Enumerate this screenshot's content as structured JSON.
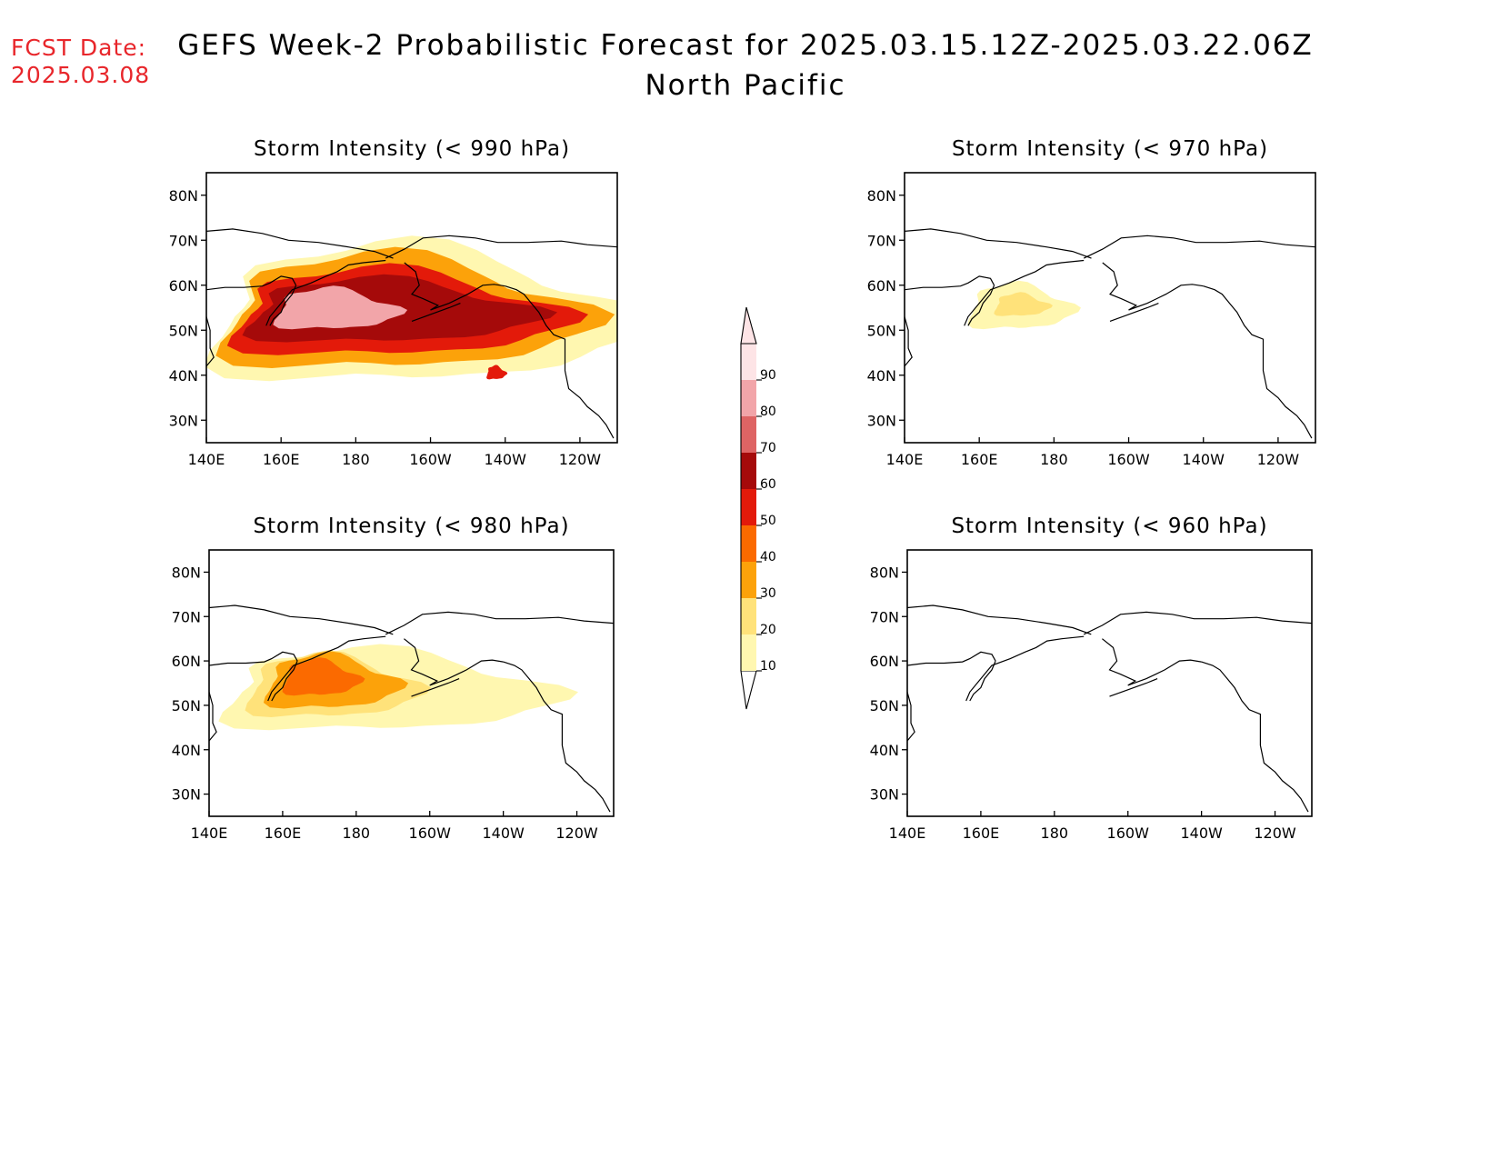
{
  "header": {
    "fcst_label": "FCST Date:",
    "fcst_date": "2025.03.08",
    "title_line1": "GEFS Week-2 Probabilistic Forecast for 2025.03.15.12Z-2025.03.22.06Z",
    "title_line2": "North Pacific"
  },
  "colorbar": {
    "levels": [
      "10",
      "20",
      "30",
      "40",
      "50",
      "60",
      "70",
      "80",
      "90"
    ],
    "colors": [
      "#fff7b0",
      "#ffe27a",
      "#fca20a",
      "#fb6a00",
      "#e31a0a",
      "#a50a0a",
      "#de6464",
      "#f2a5a9",
      "#fde4e6"
    ]
  },
  "chart_data": [
    {
      "type": "heatmap",
      "title": "Storm Intensity (< 990 hPa)",
      "x_ticks": [
        "140E",
        "160E",
        "180",
        "160W",
        "140W",
        "120W"
      ],
      "y_ticks": [
        "80N",
        "70N",
        "60N",
        "50N",
        "40N",
        "30N"
      ],
      "lon_range": [
        140,
        250
      ],
      "lat_range": [
        25,
        85
      ],
      "regions": [
        {
          "lon": [
            140,
            250
          ],
          "lat": [
            38,
            68
          ],
          "level": 10
        },
        {
          "lon": [
            143,
            238
          ],
          "lat": [
            41,
            66
          ],
          "level": 30
        },
        {
          "lon": [
            146,
            232
          ],
          "lat": [
            44,
            63
          ],
          "level": 50
        },
        {
          "lon": [
            150,
            225
          ],
          "lat": [
            47,
            61
          ],
          "level": 60
        },
        {
          "lon": [
            158,
            190
          ],
          "lat": [
            50,
            59
          ],
          "level": 80
        },
        {
          "lon": [
            215,
            220
          ],
          "lat": [
            39,
            42
          ],
          "level": 50
        }
      ]
    },
    {
      "type": "heatmap",
      "title": "Storm Intensity (< 980 hPa)",
      "x_ticks": [
        "140E",
        "160E",
        "180",
        "160W",
        "140W",
        "120W"
      ],
      "y_ticks": [
        "80N",
        "70N",
        "60N",
        "50N",
        "40N",
        "30N"
      ],
      "lon_range": [
        140,
        250
      ],
      "lat_range": [
        25,
        85
      ],
      "regions": [
        {
          "lon": [
            143,
            230
          ],
          "lat": [
            44,
            62
          ],
          "level": 10
        },
        {
          "lon": [
            150,
            195
          ],
          "lat": [
            47,
            61
          ],
          "level": 20
        },
        {
          "lon": [
            155,
            190
          ],
          "lat": [
            49,
            61
          ],
          "level": 30
        },
        {
          "lon": [
            160,
            180
          ],
          "lat": [
            52,
            60
          ],
          "level": 40
        }
      ]
    },
    {
      "type": "heatmap",
      "title": "Storm Intensity (< 970 hPa)",
      "x_ticks": [
        "140E",
        "160E",
        "180",
        "160W",
        "140W",
        "120W"
      ],
      "y_ticks": [
        "80N",
        "70N",
        "60N",
        "50N",
        "40N",
        "30N"
      ],
      "lon_range": [
        140,
        250
      ],
      "lat_range": [
        25,
        85
      ],
      "regions": [
        {
          "lon": [
            157,
            184
          ],
          "lat": [
            50,
            60
          ],
          "level": 10
        },
        {
          "lon": [
            164,
            178
          ],
          "lat": [
            53,
            58
          ],
          "level": 20
        }
      ]
    },
    {
      "type": "heatmap",
      "title": "Storm Intensity (< 960 hPa)",
      "x_ticks": [
        "140E",
        "160E",
        "180",
        "160W",
        "140W",
        "120W"
      ],
      "y_ticks": [
        "80N",
        "70N",
        "60N",
        "50N",
        "40N",
        "30N"
      ],
      "lon_range": [
        140,
        250
      ],
      "lat_range": [
        25,
        85
      ],
      "regions": []
    }
  ]
}
